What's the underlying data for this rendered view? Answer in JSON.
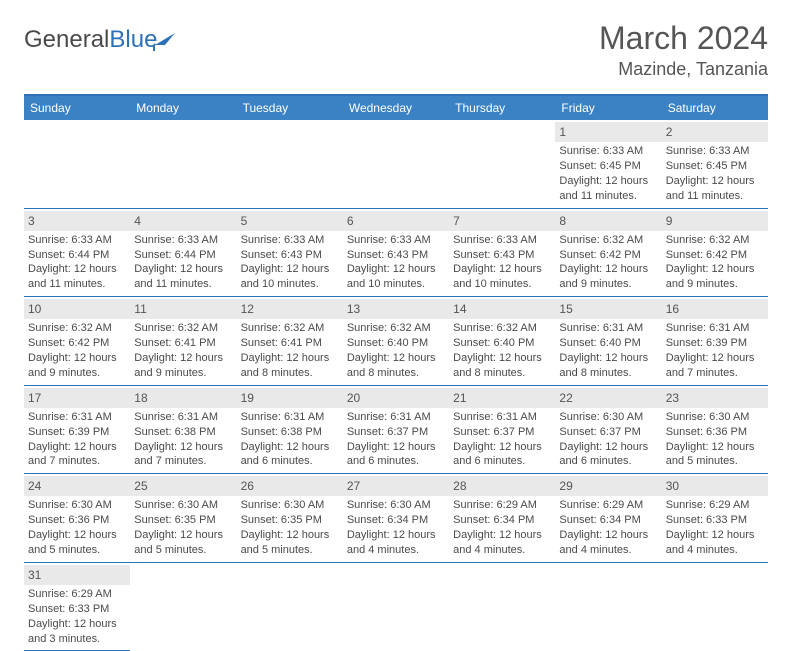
{
  "logo": {
    "text1": "General",
    "text2": "Blue"
  },
  "title": "March 2024",
  "location": "Mazinde, Tanzania",
  "header_bg": "#3b82c4",
  "border_color": "#2d71b8",
  "daynum_bg": "#e9e9e9",
  "day_names": [
    "Sunday",
    "Monday",
    "Tuesday",
    "Wednesday",
    "Thursday",
    "Friday",
    "Saturday"
  ],
  "weeks": [
    [
      null,
      null,
      null,
      null,
      null,
      {
        "n": "1",
        "sr": "6:33 AM",
        "ss": "6:45 PM",
        "dl": "12 hours and 11 minutes."
      },
      {
        "n": "2",
        "sr": "6:33 AM",
        "ss": "6:45 PM",
        "dl": "12 hours and 11 minutes."
      }
    ],
    [
      {
        "n": "3",
        "sr": "6:33 AM",
        "ss": "6:44 PM",
        "dl": "12 hours and 11 minutes."
      },
      {
        "n": "4",
        "sr": "6:33 AM",
        "ss": "6:44 PM",
        "dl": "12 hours and 11 minutes."
      },
      {
        "n": "5",
        "sr": "6:33 AM",
        "ss": "6:43 PM",
        "dl": "12 hours and 10 minutes."
      },
      {
        "n": "6",
        "sr": "6:33 AM",
        "ss": "6:43 PM",
        "dl": "12 hours and 10 minutes."
      },
      {
        "n": "7",
        "sr": "6:33 AM",
        "ss": "6:43 PM",
        "dl": "12 hours and 10 minutes."
      },
      {
        "n": "8",
        "sr": "6:32 AM",
        "ss": "6:42 PM",
        "dl": "12 hours and 9 minutes."
      },
      {
        "n": "9",
        "sr": "6:32 AM",
        "ss": "6:42 PM",
        "dl": "12 hours and 9 minutes."
      }
    ],
    [
      {
        "n": "10",
        "sr": "6:32 AM",
        "ss": "6:42 PM",
        "dl": "12 hours and 9 minutes."
      },
      {
        "n": "11",
        "sr": "6:32 AM",
        "ss": "6:41 PM",
        "dl": "12 hours and 9 minutes."
      },
      {
        "n": "12",
        "sr": "6:32 AM",
        "ss": "6:41 PM",
        "dl": "12 hours and 8 minutes."
      },
      {
        "n": "13",
        "sr": "6:32 AM",
        "ss": "6:40 PM",
        "dl": "12 hours and 8 minutes."
      },
      {
        "n": "14",
        "sr": "6:32 AM",
        "ss": "6:40 PM",
        "dl": "12 hours and 8 minutes."
      },
      {
        "n": "15",
        "sr": "6:31 AM",
        "ss": "6:40 PM",
        "dl": "12 hours and 8 minutes."
      },
      {
        "n": "16",
        "sr": "6:31 AM",
        "ss": "6:39 PM",
        "dl": "12 hours and 7 minutes."
      }
    ],
    [
      {
        "n": "17",
        "sr": "6:31 AM",
        "ss": "6:39 PM",
        "dl": "12 hours and 7 minutes."
      },
      {
        "n": "18",
        "sr": "6:31 AM",
        "ss": "6:38 PM",
        "dl": "12 hours and 7 minutes."
      },
      {
        "n": "19",
        "sr": "6:31 AM",
        "ss": "6:38 PM",
        "dl": "12 hours and 6 minutes."
      },
      {
        "n": "20",
        "sr": "6:31 AM",
        "ss": "6:37 PM",
        "dl": "12 hours and 6 minutes."
      },
      {
        "n": "21",
        "sr": "6:31 AM",
        "ss": "6:37 PM",
        "dl": "12 hours and 6 minutes."
      },
      {
        "n": "22",
        "sr": "6:30 AM",
        "ss": "6:37 PM",
        "dl": "12 hours and 6 minutes."
      },
      {
        "n": "23",
        "sr": "6:30 AM",
        "ss": "6:36 PM",
        "dl": "12 hours and 5 minutes."
      }
    ],
    [
      {
        "n": "24",
        "sr": "6:30 AM",
        "ss": "6:36 PM",
        "dl": "12 hours and 5 minutes."
      },
      {
        "n": "25",
        "sr": "6:30 AM",
        "ss": "6:35 PM",
        "dl": "12 hours and 5 minutes."
      },
      {
        "n": "26",
        "sr": "6:30 AM",
        "ss": "6:35 PM",
        "dl": "12 hours and 5 minutes."
      },
      {
        "n": "27",
        "sr": "6:30 AM",
        "ss": "6:34 PM",
        "dl": "12 hours and 4 minutes."
      },
      {
        "n": "28",
        "sr": "6:29 AM",
        "ss": "6:34 PM",
        "dl": "12 hours and 4 minutes."
      },
      {
        "n": "29",
        "sr": "6:29 AM",
        "ss": "6:34 PM",
        "dl": "12 hours and 4 minutes."
      },
      {
        "n": "30",
        "sr": "6:29 AM",
        "ss": "6:33 PM",
        "dl": "12 hours and 4 minutes."
      }
    ],
    [
      {
        "n": "31",
        "sr": "6:29 AM",
        "ss": "6:33 PM",
        "dl": "12 hours and 3 minutes."
      },
      null,
      null,
      null,
      null,
      null,
      null
    ]
  ],
  "labels": {
    "sunrise": "Sunrise: ",
    "sunset": "Sunset: ",
    "daylight": "Daylight: "
  }
}
